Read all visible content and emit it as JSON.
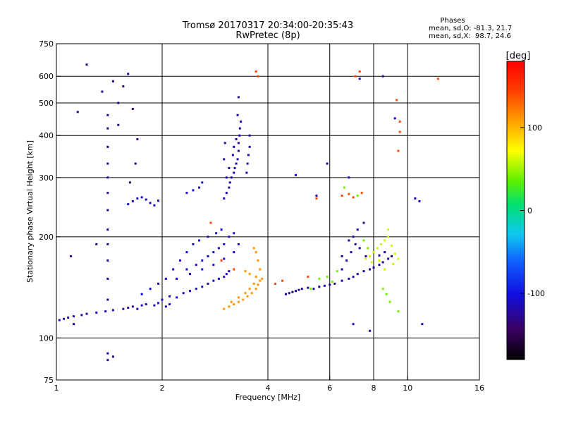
{
  "chart_data": {
    "type": "scatter",
    "title": "Tromsø 20170317 20:34:00-20:35:43",
    "subtitle": "RwPretec (8p)",
    "stats": {
      "heading": "Phases",
      "o_line": "mean, sd,O: -81.3, 21.7",
      "x_line": "mean, sd,X:  98.7, 24.6"
    },
    "xlabel": "Frequency [MHz]",
    "ylabel": "Stationary phase Virtual Height [km]",
    "xscale": "log",
    "yscale": "log",
    "xlim": [
      1,
      16
    ],
    "ylim": [
      75,
      750
    ],
    "x_ticks": [
      1,
      2,
      4,
      6,
      8,
      10,
      16
    ],
    "y_ticks": [
      75,
      100,
      200,
      300,
      400,
      500,
      600,
      750
    ],
    "x_grid": [
      2,
      4,
      6,
      8,
      10
    ],
    "y_grid": [
      100,
      200,
      300,
      400,
      500,
      600
    ],
    "colorbar": {
      "label": "[deg]",
      "range": [
        -180,
        180
      ],
      "ticks": [
        100,
        0,
        -100
      ]
    },
    "series": [
      {
        "phase": -118,
        "points": [
          [
            1.02,
            113
          ],
          [
            1.05,
            114
          ],
          [
            1.08,
            115
          ],
          [
            1.12,
            116
          ],
          [
            1.18,
            117
          ],
          [
            1.22,
            118
          ],
          [
            1.3,
            119
          ],
          [
            1.38,
            120
          ],
          [
            1.45,
            121
          ],
          [
            1.55,
            122
          ],
          [
            1.6,
            123
          ],
          [
            1.65,
            124
          ],
          [
            1.7,
            122
          ],
          [
            1.75,
            125
          ],
          [
            1.8,
            126
          ],
          [
            1.9,
            125
          ],
          [
            1.95,
            127
          ],
          [
            2.05,
            124
          ],
          [
            2.1,
            126
          ]
        ]
      },
      {
        "phase": -108,
        "points": [
          [
            2.0,
            130
          ],
          [
            2.1,
            133
          ],
          [
            2.2,
            132
          ],
          [
            2.3,
            136
          ],
          [
            2.4,
            138
          ],
          [
            2.5,
            140
          ],
          [
            2.6,
            142
          ],
          [
            2.7,
            145
          ],
          [
            2.8,
            148
          ],
          [
            2.9,
            150
          ],
          [
            3.0,
            152
          ],
          [
            3.05,
            155
          ],
          [
            3.1,
            158
          ],
          [
            2.2,
            150
          ],
          [
            2.35,
            160
          ],
          [
            2.5,
            165
          ],
          [
            2.6,
            170
          ],
          [
            2.7,
            175
          ],
          [
            2.8,
            180
          ],
          [
            2.9,
            185
          ],
          [
            3.0,
            190
          ],
          [
            3.1,
            200
          ],
          [
            3.2,
            205
          ],
          [
            1.75,
            135
          ],
          [
            1.85,
            140
          ],
          [
            1.95,
            145
          ],
          [
            2.05,
            150
          ],
          [
            2.15,
            160
          ],
          [
            2.25,
            170
          ],
          [
            2.35,
            180
          ],
          [
            2.45,
            190
          ],
          [
            2.55,
            195
          ],
          [
            2.7,
            200
          ],
          [
            2.85,
            205
          ],
          [
            2.95,
            210
          ],
          [
            2.4,
            155
          ],
          [
            2.6,
            160
          ],
          [
            2.8,
            165
          ],
          [
            3.0,
            172
          ],
          [
            3.2,
            180
          ],
          [
            3.3,
            190
          ]
        ]
      },
      {
        "phase": 112,
        "points": [
          [
            3.0,
            122
          ],
          [
            3.1,
            124
          ],
          [
            3.2,
            126
          ],
          [
            3.3,
            128
          ],
          [
            3.4,
            130
          ],
          [
            3.5,
            133
          ],
          [
            3.6,
            136
          ],
          [
            3.7,
            140
          ],
          [
            3.75,
            144
          ],
          [
            3.8,
            148
          ],
          [
            3.85,
            150
          ],
          [
            3.15,
            128
          ],
          [
            3.3,
            132
          ],
          [
            3.45,
            136
          ],
          [
            3.55,
            140
          ],
          [
            3.65,
            145
          ],
          [
            3.7,
            152
          ],
          [
            3.55,
            155
          ],
          [
            3.45,
            158
          ],
          [
            3.8,
            160
          ],
          [
            3.75,
            170
          ],
          [
            3.7,
            180
          ],
          [
            3.65,
            185
          ]
        ]
      },
      {
        "phase": -120,
        "points": [
          [
            3.0,
            260
          ],
          [
            3.05,
            270
          ],
          [
            3.1,
            280
          ],
          [
            3.12,
            290
          ],
          [
            3.15,
            300
          ],
          [
            3.2,
            310
          ],
          [
            3.22,
            320
          ],
          [
            3.25,
            330
          ],
          [
            3.28,
            340
          ],
          [
            3.3,
            360
          ],
          [
            3.3,
            380
          ],
          [
            3.32,
            400
          ],
          [
            3.33,
            420
          ],
          [
            3.35,
            440
          ],
          [
            3.05,
            300
          ],
          [
            3.1,
            320
          ],
          [
            3.18,
            350
          ],
          [
            3.2,
            370
          ],
          [
            3.25,
            390
          ],
          [
            3.5,
            330
          ],
          [
            3.52,
            350
          ],
          [
            3.55,
            370
          ],
          [
            3.55,
            400
          ],
          [
            3.48,
            310
          ],
          [
            3.0,
            340
          ],
          [
            3.02,
            380
          ],
          [
            3.28,
            460
          ],
          [
            3.3,
            520
          ]
        ]
      },
      {
        "phase": -110,
        "points": [
          [
            1.6,
            250
          ],
          [
            1.65,
            255
          ],
          [
            1.7,
            260
          ],
          [
            1.75,
            262
          ],
          [
            1.8,
            258
          ],
          [
            1.85,
            252
          ],
          [
            1.9,
            248
          ],
          [
            1.95,
            256
          ],
          [
            2.35,
            270
          ],
          [
            2.45,
            275
          ],
          [
            2.55,
            280
          ],
          [
            2.6,
            290
          ]
        ]
      },
      {
        "phase": -130,
        "points": [
          [
            1.4,
            130
          ],
          [
            1.4,
            150
          ],
          [
            1.4,
            170
          ],
          [
            1.4,
            190
          ],
          [
            1.4,
            210
          ],
          [
            1.4,
            240
          ],
          [
            1.4,
            270
          ],
          [
            1.4,
            300
          ],
          [
            1.4,
            330
          ],
          [
            1.4,
            370
          ],
          [
            1.4,
            420
          ],
          [
            1.4,
            460
          ],
          [
            1.5,
            500
          ],
          [
            1.55,
            560
          ],
          [
            1.6,
            610
          ],
          [
            1.22,
            650
          ],
          [
            1.35,
            540
          ],
          [
            1.45,
            580
          ],
          [
            1.3,
            190
          ],
          [
            1.5,
            430
          ],
          [
            1.65,
            480
          ],
          [
            1.7,
            390
          ],
          [
            1.68,
            330
          ],
          [
            1.62,
            290
          ],
          [
            1.4,
            90
          ],
          [
            1.45,
            88
          ],
          [
            1.4,
            86
          ],
          [
            1.12,
            110
          ],
          [
            1.1,
            175
          ],
          [
            1.15,
            470
          ]
        ]
      },
      {
        "phase": -125,
        "points": [
          [
            4.5,
            135
          ],
          [
            4.6,
            136
          ],
          [
            4.7,
            137
          ],
          [
            4.8,
            138
          ],
          [
            4.9,
            139
          ],
          [
            5.0,
            140
          ],
          [
            5.2,
            141
          ],
          [
            5.4,
            140
          ],
          [
            5.6,
            142
          ],
          [
            5.8,
            143
          ],
          [
            6.0,
            144
          ],
          [
            6.2,
            145
          ],
          [
            6.5,
            148
          ],
          [
            6.8,
            150
          ],
          [
            7.0,
            152
          ],
          [
            7.2,
            155
          ],
          [
            7.5,
            158
          ],
          [
            7.8,
            160
          ],
          [
            8.0,
            162
          ],
          [
            8.3,
            165
          ],
          [
            8.5,
            168
          ],
          [
            8.8,
            172
          ],
          [
            9.0,
            175
          ],
          [
            6.5,
            160
          ],
          [
            6.7,
            170
          ],
          [
            6.9,
            180
          ],
          [
            7.1,
            190
          ],
          [
            7.3,
            185
          ],
          [
            7.6,
            175
          ],
          [
            7.0,
            200
          ],
          [
            7.2,
            210
          ],
          [
            6.8,
            195
          ],
          [
            7.5,
            220
          ],
          [
            6.5,
            175
          ],
          [
            8.3,
            176
          ],
          [
            8.6,
            180
          ]
        ]
      },
      {
        "phase": 60,
        "points": [
          [
            7.8,
            175
          ],
          [
            8.0,
            180
          ],
          [
            8.2,
            185
          ],
          [
            8.4,
            190
          ],
          [
            8.6,
            195
          ],
          [
            8.8,
            200
          ],
          [
            9.0,
            188
          ],
          [
            9.2,
            178
          ],
          [
            9.4,
            172
          ],
          [
            8.3,
            170
          ],
          [
            7.9,
            168
          ],
          [
            8.6,
            160
          ],
          [
            9.1,
            166
          ],
          [
            7.6,
            172
          ],
          [
            8.8,
            210
          ]
        ]
      },
      {
        "phase": 140,
        "points": [
          [
            6.5,
            265
          ],
          [
            6.8,
            268
          ],
          [
            7.0,
            262
          ],
          [
            7.4,
            270
          ],
          [
            5.5,
            260
          ],
          [
            7.1,
            600
          ],
          [
            7.3,
            620
          ],
          [
            9.3,
            510
          ],
          [
            9.5,
            440
          ],
          [
            12.2,
            590
          ],
          [
            3.75,
            600
          ],
          [
            3.7,
            620
          ],
          [
            2.75,
            220
          ],
          [
            3.2,
            160
          ],
          [
            2.95,
            170
          ],
          [
            4.2,
            145
          ],
          [
            4.4,
            148
          ],
          [
            5.2,
            152
          ],
          [
            9.5,
            410
          ],
          [
            9.4,
            360
          ]
        ]
      },
      {
        "phase": -115,
        "points": [
          [
            7.0,
            110
          ],
          [
            7.8,
            105
          ],
          [
            10.8,
            255
          ],
          [
            11.0,
            110
          ],
          [
            10.5,
            260
          ],
          [
            9.2,
            450
          ],
          [
            8.5,
            600
          ],
          [
            7.3,
            590
          ],
          [
            6.8,
            300
          ],
          [
            5.5,
            265
          ],
          [
            5.9,
            330
          ],
          [
            4.8,
            305
          ]
        ]
      },
      {
        "phase": 40,
        "points": [
          [
            5.6,
            150
          ],
          [
            5.9,
            152
          ],
          [
            6.3,
            158
          ],
          [
            5.3,
            140
          ],
          [
            6.1,
            147
          ],
          [
            7.5,
            195
          ],
          [
            7.7,
            185
          ],
          [
            8.5,
            140
          ],
          [
            8.7,
            135
          ],
          [
            9.4,
            120
          ],
          [
            8.9,
            128
          ],
          [
            6.6,
            280
          ],
          [
            7.2,
            265
          ]
        ]
      }
    ]
  }
}
